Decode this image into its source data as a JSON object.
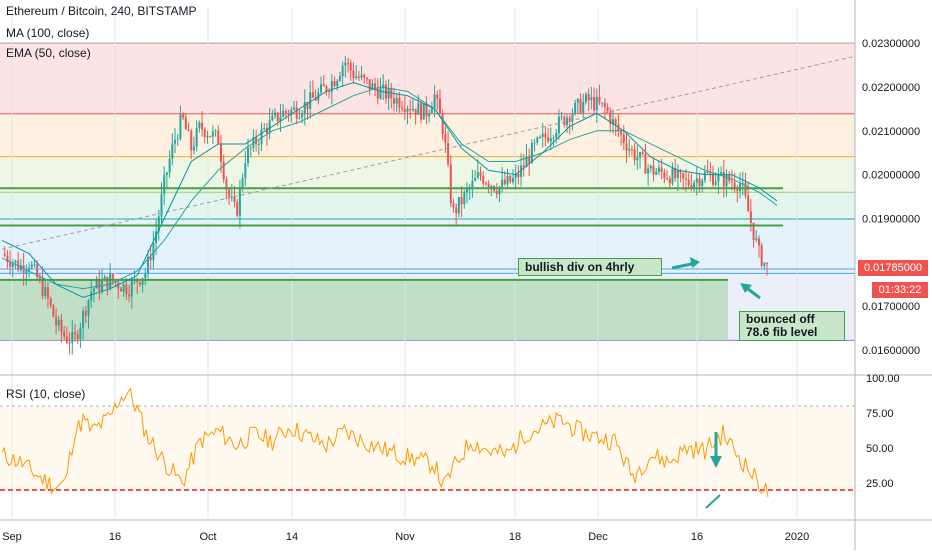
{
  "header": {
    "title": "Ethereum / Bitcoin, 240, BITSTAMP",
    "indicator_1": "MA (100, close)",
    "indicator_2": "EMA (50, close)",
    "rsi_label": "RSI (10, close)"
  },
  "annotations": {
    "bullish": "bullish div on 4hrly",
    "bounced_line1": "bounced off",
    "bounced_line2": "78.6 fib level"
  },
  "badges": {
    "price": "0.01785000",
    "countdown": "01:33:22",
    "price_color": "#ef5350",
    "countdown_color": "#ef5350"
  },
  "colors": {
    "up": "#26a69a",
    "down": "#ef5350",
    "rsi": "#ff9800",
    "trend_line": "#43a047"
  },
  "chart_data": [
    {
      "type": "candlestick",
      "title": "Ethereum / Bitcoin, 240, BITSTAMP",
      "x_ticks": [
        "Sep",
        "16",
        "Oct",
        "14",
        "Nov",
        "18",
        "Dec",
        "16",
        "2020"
      ],
      "y_ticks": [
        "0.02300000",
        "0.02200000",
        "0.02100000",
        "0.02000000",
        "0.01900000",
        "0.01700000",
        "0.01600000"
      ],
      "ylim": [
        0.0155,
        0.0238
      ],
      "last_price": 0.01785,
      "close_path": [
        [
          0,
          0.0182
        ],
        [
          2,
          0.0179
        ],
        [
          3,
          0.018
        ],
        [
          5,
          0.0172
        ],
        [
          6,
          0.0166
        ],
        [
          7,
          0.0163
        ],
        [
          8,
          0.0162
        ],
        [
          9,
          0.0168
        ],
        [
          10,
          0.0174
        ],
        [
          12,
          0.0176
        ],
        [
          14,
          0.0174
        ],
        [
          15,
          0.0176
        ],
        [
          16,
          0.0178
        ],
        [
          17,
          0.0186
        ],
        [
          18,
          0.0198
        ],
        [
          19,
          0.0207
        ],
        [
          20,
          0.0213
        ],
        [
          21,
          0.0206
        ],
        [
          22,
          0.0211
        ],
        [
          24,
          0.0208
        ],
        [
          25,
          0.0196
        ],
        [
          26,
          0.0191
        ],
        [
          27,
          0.0204
        ],
        [
          29,
          0.021
        ],
        [
          31,
          0.0214
        ],
        [
          33,
          0.0215
        ],
        [
          35,
          0.0218
        ],
        [
          37,
          0.0222
        ],
        [
          38,
          0.0226
        ],
        [
          39,
          0.0223
        ],
        [
          41,
          0.022
        ],
        [
          43,
          0.0218
        ],
        [
          45,
          0.0216
        ],
        [
          47,
          0.0214
        ],
        [
          48,
          0.0218
        ],
        [
          49,
          0.021
        ],
        [
          50,
          0.0191
        ],
        [
          51,
          0.0194
        ],
        [
          53,
          0.02
        ],
        [
          55,
          0.0197
        ],
        [
          57,
          0.0199
        ],
        [
          59,
          0.0206
        ],
        [
          61,
          0.021
        ],
        [
          63,
          0.0214
        ],
        [
          65,
          0.0217
        ],
        [
          67,
          0.0215
        ],
        [
          68,
          0.0211
        ],
        [
          70,
          0.0205
        ],
        [
          72,
          0.0201
        ],
        [
          74,
          0.02
        ],
        [
          76,
          0.0198
        ],
        [
          78,
          0.02
        ],
        [
          80,
          0.0199
        ],
        [
          82,
          0.0198
        ],
        [
          83,
          0.019
        ],
        [
          84,
          0.0182
        ],
        [
          85,
          0.01785
        ]
      ],
      "ma_100": [
        [
          0,
          0.0181
        ],
        [
          3,
          0.0178
        ],
        [
          6,
          0.0175
        ],
        [
          9,
          0.0174
        ],
        [
          12,
          0.0175
        ],
        [
          15,
          0.0178
        ],
        [
          18,
          0.0185
        ],
        [
          21,
          0.0194
        ],
        [
          24,
          0.0201
        ],
        [
          27,
          0.0206
        ],
        [
          30,
          0.021
        ],
        [
          33,
          0.0212
        ],
        [
          36,
          0.0215
        ],
        [
          39,
          0.0218
        ],
        [
          42,
          0.022
        ],
        [
          45,
          0.0219
        ],
        [
          48,
          0.0215
        ],
        [
          51,
          0.0207
        ],
        [
          54,
          0.0203
        ],
        [
          57,
          0.0203
        ],
        [
          60,
          0.0205
        ],
        [
          63,
          0.0208
        ],
        [
          66,
          0.021
        ],
        [
          69,
          0.021
        ],
        [
          72,
          0.0207
        ],
        [
          75,
          0.0204
        ],
        [
          78,
          0.0201
        ],
        [
          81,
          0.0199
        ],
        [
          84,
          0.0196
        ],
        [
          86,
          0.0193
        ]
      ],
      "ema_50": [
        [
          0,
          0.0185
        ],
        [
          3,
          0.0182
        ],
        [
          6,
          0.0175
        ],
        [
          9,
          0.0172
        ],
        [
          12,
          0.0174
        ],
        [
          15,
          0.0177
        ],
        [
          18,
          0.019
        ],
        [
          21,
          0.0203
        ],
        [
          24,
          0.0207
        ],
        [
          27,
          0.0207
        ],
        [
          30,
          0.0211
        ],
        [
          33,
          0.0215
        ],
        [
          36,
          0.0219
        ],
        [
          39,
          0.0221
        ],
        [
          42,
          0.0219
        ],
        [
          45,
          0.0218
        ],
        [
          48,
          0.0215
        ],
        [
          51,
          0.0206
        ],
        [
          54,
          0.0201
        ],
        [
          57,
          0.02
        ],
        [
          60,
          0.0205
        ],
        [
          63,
          0.0211
        ],
        [
          66,
          0.0214
        ],
        [
          69,
          0.021
        ],
        [
          72,
          0.0204
        ],
        [
          75,
          0.0201
        ],
        [
          78,
          0.02
        ],
        [
          81,
          0.02
        ],
        [
          84,
          0.0197
        ],
        [
          86,
          0.0194
        ]
      ],
      "fib_levels": [
        0.023,
        0.02139,
        0.02041,
        0.0196,
        0.01899,
        0.01775,
        0.01622
      ],
      "horizontal_lines": [
        0.01969,
        0.01884,
        0.0176
      ],
      "trend_line": [
        [
          0,
          0.0183
        ],
        [
          87,
          0.0227
        ]
      ],
      "zones": {
        "support_box": [
          0.01622,
          0.0176
        ]
      }
    },
    {
      "type": "line",
      "title": "RSI (10, close)",
      "y_ticks": [
        "100.00",
        "75.00",
        "50.00",
        "25.00"
      ],
      "ylim": [
        0,
        100
      ],
      "bands": [
        20,
        80
      ],
      "values": [
        [
          0,
          45
        ],
        [
          2,
          40
        ],
        [
          4,
          30
        ],
        [
          6,
          22
        ],
        [
          7,
          25
        ],
        [
          8,
          60
        ],
        [
          9,
          70
        ],
        [
          10,
          62
        ],
        [
          12,
          72
        ],
        [
          13,
          85
        ],
        [
          14,
          90
        ],
        [
          15,
          78
        ],
        [
          16,
          60
        ],
        [
          18,
          40
        ],
        [
          20,
          25
        ],
        [
          22,
          55
        ],
        [
          24,
          62
        ],
        [
          26,
          52
        ],
        [
          28,
          60
        ],
        [
          30,
          55
        ],
        [
          32,
          65
        ],
        [
          34,
          58
        ],
        [
          36,
          52
        ],
        [
          38,
          62
        ],
        [
          40,
          55
        ],
        [
          42,
          50
        ],
        [
          44,
          45
        ],
        [
          46,
          42
        ],
        [
          48,
          38
        ],
        [
          49,
          22
        ],
        [
          50,
          35
        ],
        [
          52,
          55
        ],
        [
          54,
          48
        ],
        [
          56,
          45
        ],
        [
          58,
          60
        ],
        [
          60,
          65
        ],
        [
          62,
          70
        ],
        [
          64,
          62
        ],
        [
          66,
          58
        ],
        [
          68,
          55
        ],
        [
          70,
          30
        ],
        [
          72,
          45
        ],
        [
          74,
          40
        ],
        [
          76,
          50
        ],
        [
          78,
          48
        ],
        [
          80,
          60
        ],
        [
          82,
          42
        ],
        [
          84,
          25
        ],
        [
          85,
          18
        ]
      ]
    }
  ]
}
